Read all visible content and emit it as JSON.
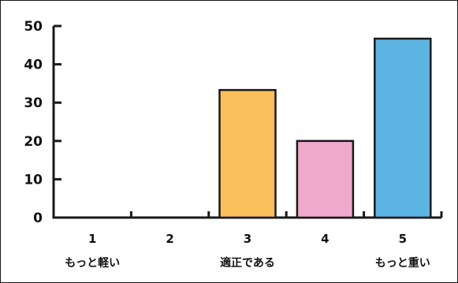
{
  "chart_data": {
    "type": "bar",
    "categories": [
      "1",
      "2",
      "3",
      "4",
      "5"
    ],
    "category_sublabels": [
      "もっと軽い",
      "",
      "適正である",
      "",
      "もっと重い"
    ],
    "values": [
      0,
      0,
      33.3,
      20,
      46.7
    ],
    "colors": [
      "#f9c05c",
      "#f9c05c",
      "#f9c05c",
      "#eea9cc",
      "#5bb4e2"
    ],
    "title": "",
    "xlabel": "",
    "ylabel": "",
    "ylim": [
      0,
      50
    ],
    "yticks": [
      "0",
      "10",
      "20",
      "30",
      "40",
      "50"
    ],
    "grid": false,
    "legend": "none"
  }
}
